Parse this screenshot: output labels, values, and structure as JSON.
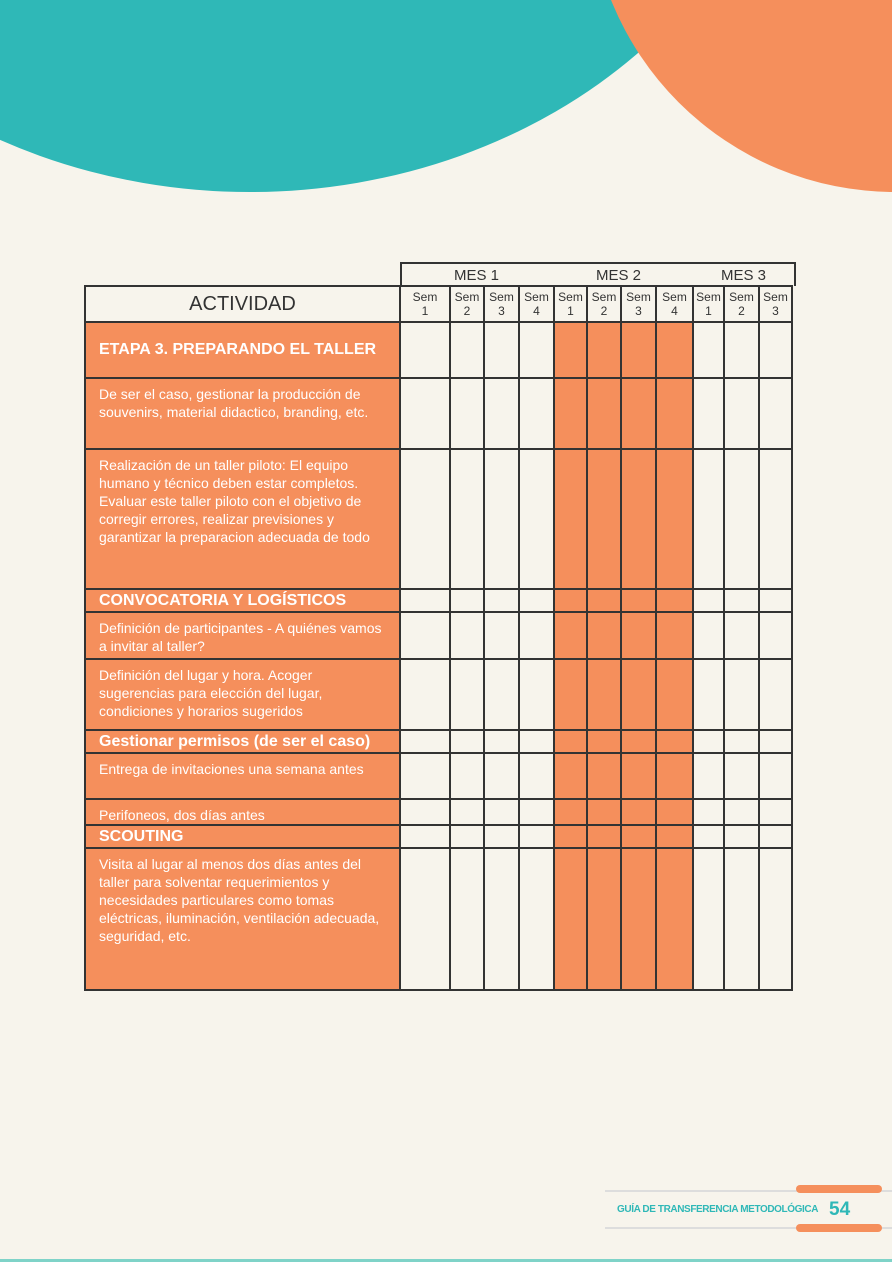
{
  "header": {
    "months": [
      "MES 1",
      "MES 2",
      "MES 3"
    ],
    "activity_label": "ACTIVIDAD",
    "weeks": [
      [
        "Sem",
        "1"
      ],
      [
        "Sem",
        "2"
      ],
      [
        "Sem",
        "3"
      ],
      [
        "Sem",
        "4"
      ],
      [
        "Sem",
        "1"
      ],
      [
        "Sem",
        "2"
      ],
      [
        "Sem",
        "3"
      ],
      [
        "Sem",
        "4"
      ],
      [
        "Sem",
        "1"
      ],
      [
        "Sem",
        "2"
      ],
      [
        "Sem",
        "3"
      ]
    ]
  },
  "active_weeks": [
    false,
    false,
    false,
    false,
    true,
    true,
    true,
    true,
    false,
    false,
    false
  ],
  "colors": {
    "orange": "#F58F5C",
    "teal": "#2FB8B7",
    "background": "#F7F4EC"
  },
  "rows": [
    {
      "label": "ETAPA 3. PREPARANDO EL TALLER",
      "heading": true
    },
    {
      "label": "De ser el caso, gestionar la producción de souvenirs, material didactico, branding, etc.",
      "heading": false
    },
    {
      "label": "Realización de un taller piloto: El equipo humano y técnico deben estar completos. Evaluar este taller piloto con el objetivo de corregir errores, realizar previsiones y garantizar la preparacion adecuada de todo",
      "heading": false
    },
    {
      "label": "CONVOCATORIA Y LOGÍSTICOS",
      "heading": true
    },
    {
      "label": "Definición de participantes - A quiénes vamos a invitar al taller?",
      "heading": false
    },
    {
      "label": "Definición del lugar y hora.  Acoger sugerencias para elección del lugar, condiciones y horarios sugeridos",
      "heading": false
    },
    {
      "label": "Gestionar permisos (de ser el caso)",
      "heading": true
    },
    {
      "label": "Entrega de invitaciones una semana antes",
      "heading": false
    },
    {
      "label": "Perifoneos, dos días antes",
      "heading": false
    },
    {
      "label": "SCOUTING",
      "heading": true
    },
    {
      "label": "Visita al lugar al menos dos días antes del taller para solventar requerimientos y necesidades particulares como tomas eléctricas, iluminación, ventilación adecuada, seguridad, etc.",
      "heading": false
    }
  ],
  "footer": {
    "title": "GUÍA DE TRANSFERENCIA METODOLÓGICA",
    "page": "54"
  }
}
